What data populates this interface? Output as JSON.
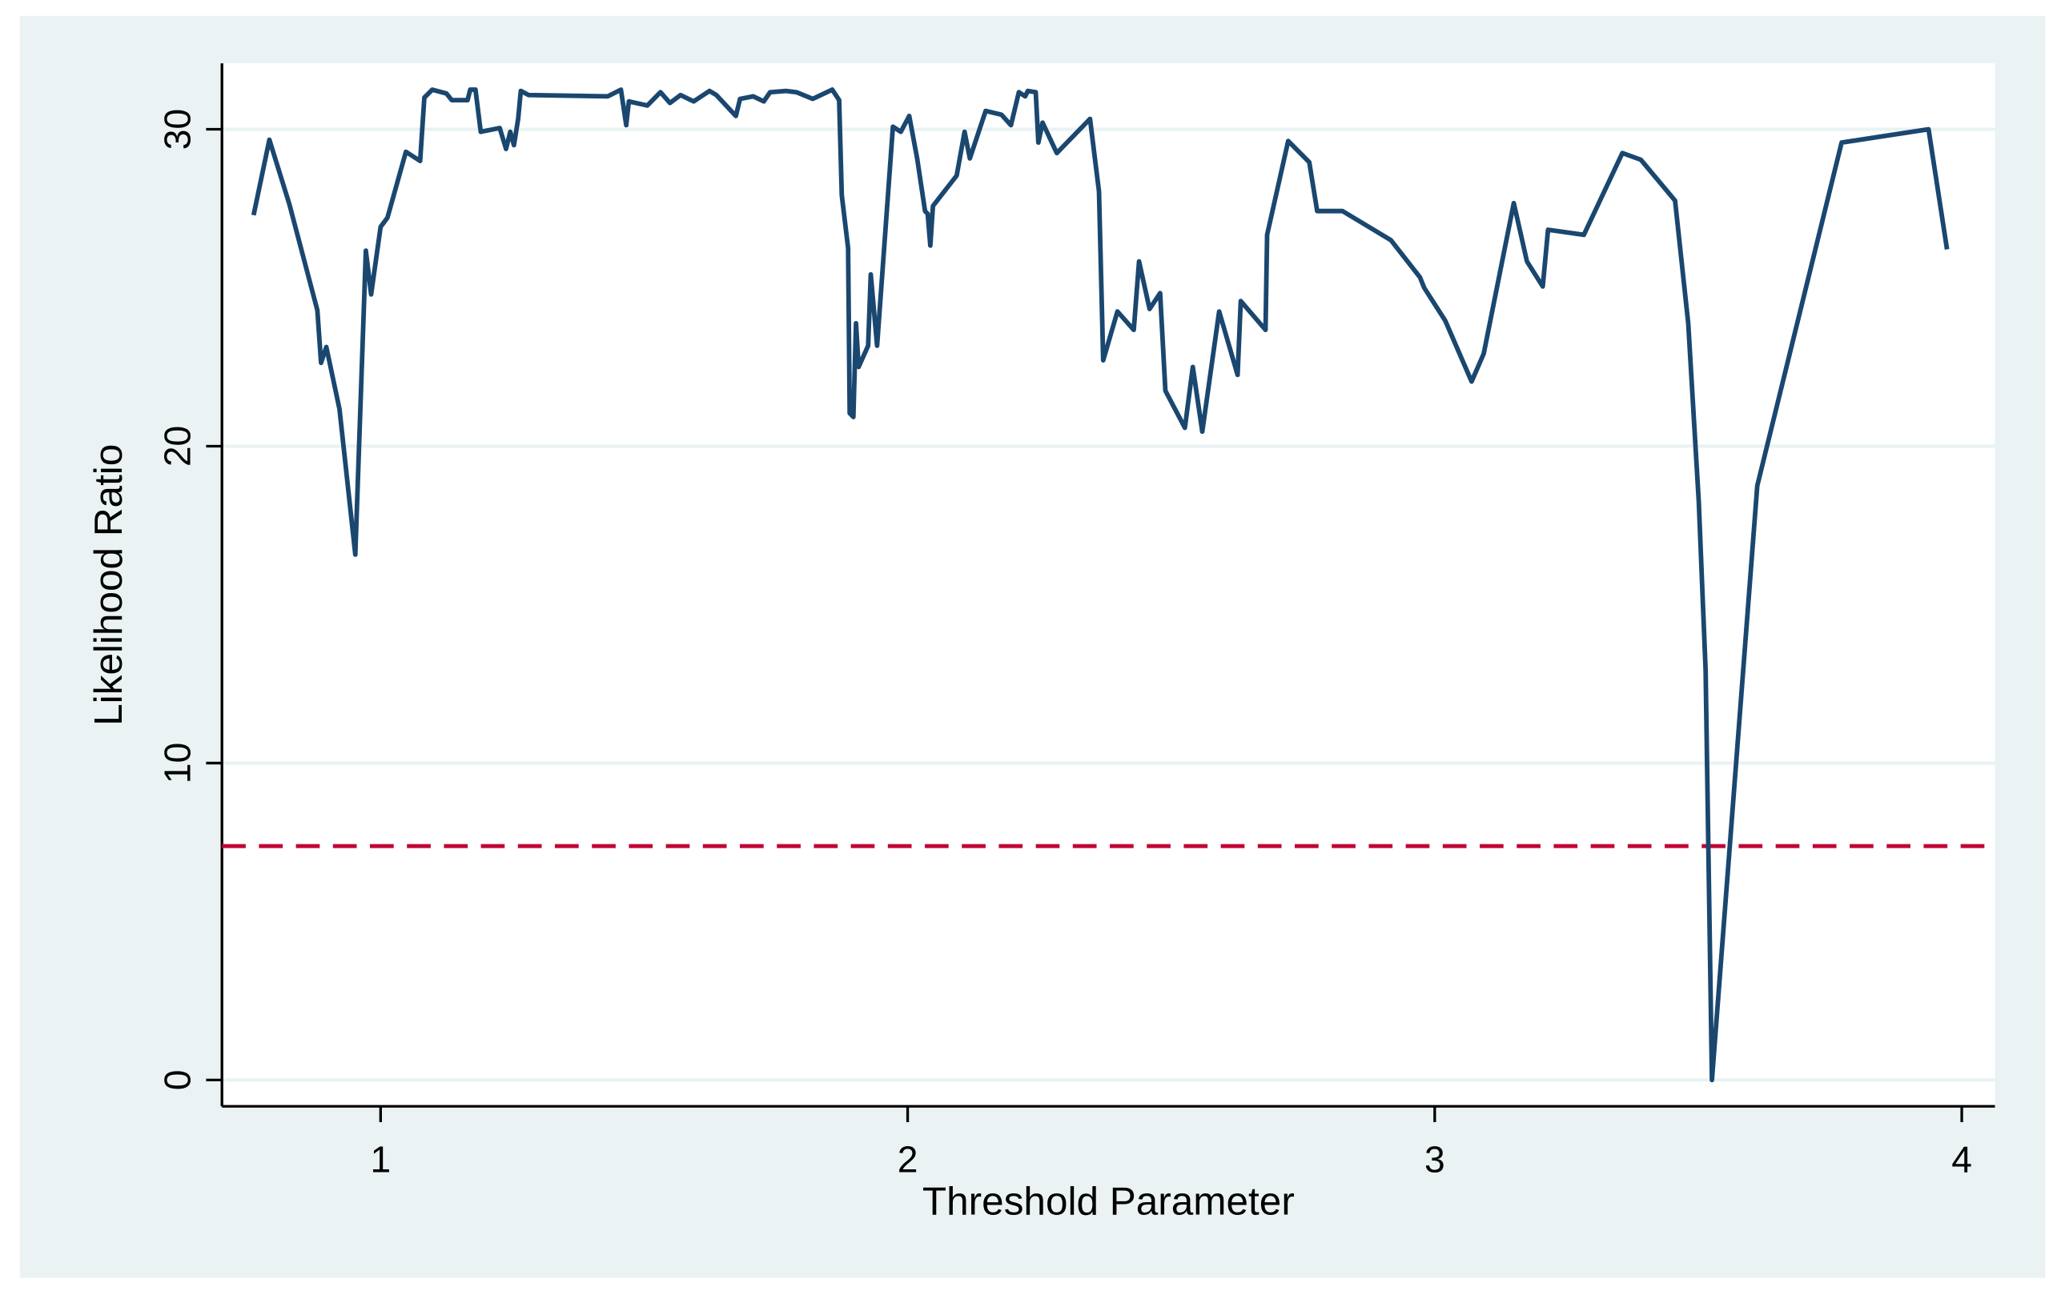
{
  "chart_data": {
    "type": "line",
    "x_label": "Threshold Parameter",
    "y_label": "Likelihood Ratio",
    "color": "#1a476f",
    "x": [
      0.759,
      0.789,
      0.827,
      0.88,
      0.887,
      0.897,
      0.922,
      0.952,
      0.972,
      0.982,
      1.0,
      1.013,
      1.048,
      1.075,
      1.083,
      1.098,
      1.125,
      1.135,
      1.165,
      1.17,
      1.18,
      1.19,
      1.226,
      1.238,
      1.246,
      1.253,
      1.261,
      1.266,
      1.281,
      1.431,
      1.456,
      1.466,
      1.471,
      1.506,
      1.531,
      1.549,
      1.569,
      1.594,
      1.624,
      1.637,
      1.674,
      1.682,
      1.707,
      1.727,
      1.739,
      1.769,
      1.789,
      1.82,
      1.857,
      1.87,
      1.875,
      1.887,
      1.89,
      1.897,
      1.902,
      1.907,
      1.925,
      1.93,
      1.942,
      1.972,
      1.987,
      2.003,
      2.018,
      2.033,
      2.038,
      2.043,
      2.048,
      2.093,
      2.108,
      2.118,
      2.148,
      2.178,
      2.196,
      2.211,
      2.223,
      2.228,
      2.243,
      2.248,
      2.256,
      2.283,
      2.346,
      2.363,
      2.371,
      2.398,
      2.429,
      2.439,
      2.459,
      2.479,
      2.489,
      2.526,
      2.541,
      2.559,
      2.591,
      2.626,
      2.632,
      2.679,
      2.682,
      2.722,
      2.762,
      2.777,
      2.825,
      2.917,
      2.972,
      2.98,
      3.02,
      3.07,
      3.093,
      3.15,
      3.175,
      3.205,
      3.215,
      3.283,
      3.356,
      3.391,
      3.456,
      3.481,
      3.501,
      3.514,
      3.526,
      3.612,
      3.772,
      3.937,
      3.972
    ],
    "values": [
      27.29,
      29.67,
      27.63,
      24.29,
      22.63,
      23.13,
      21.17,
      16.58,
      26.17,
      24.79,
      26.92,
      27.21,
      29.29,
      29.0,
      31.0,
      31.25,
      31.13,
      30.92,
      30.92,
      31.25,
      31.25,
      29.92,
      30.04,
      29.38,
      29.92,
      29.5,
      30.33,
      31.21,
      31.08,
      31.04,
      31.25,
      30.13,
      30.88,
      30.75,
      31.17,
      30.83,
      31.08,
      30.88,
      31.21,
      31.08,
      30.42,
      30.96,
      31.04,
      30.88,
      31.17,
      31.21,
      31.17,
      30.96,
      31.25,
      30.92,
      27.92,
      26.25,
      21.04,
      20.92,
      23.88,
      22.5,
      23.17,
      25.42,
      23.17,
      30.08,
      29.92,
      30.42,
      29.08,
      27.42,
      27.33,
      26.33,
      27.58,
      28.54,
      29.92,
      29.08,
      30.58,
      30.46,
      30.13,
      31.17,
      31.04,
      31.21,
      31.17,
      29.58,
      30.21,
      29.25,
      30.33,
      28.04,
      22.71,
      24.25,
      23.67,
      25.83,
      24.33,
      24.83,
      21.75,
      20.58,
      22.5,
      20.46,
      24.25,
      22.25,
      24.58,
      23.67,
      26.67,
      29.63,
      28.96,
      27.42,
      27.42,
      26.5,
      25.33,
      25.0,
      23.96,
      22.04,
      22.92,
      27.67,
      25.83,
      25.04,
      26.83,
      26.67,
      29.25,
      29.04,
      27.75,
      23.88,
      18.25,
      12.92,
      0,
      18.75,
      29.58,
      30.0,
      26.21
    ],
    "reference_line": {
      "value": 7.38,
      "color": "#c10534"
    },
    "xlim": [
      0.699,
      4.063
    ],
    "ylim": [
      -0.83,
      32.08
    ],
    "xticks": [
      1,
      2,
      3,
      4
    ],
    "yticks": [
      0,
      10,
      20,
      30
    ],
    "grid": true
  }
}
